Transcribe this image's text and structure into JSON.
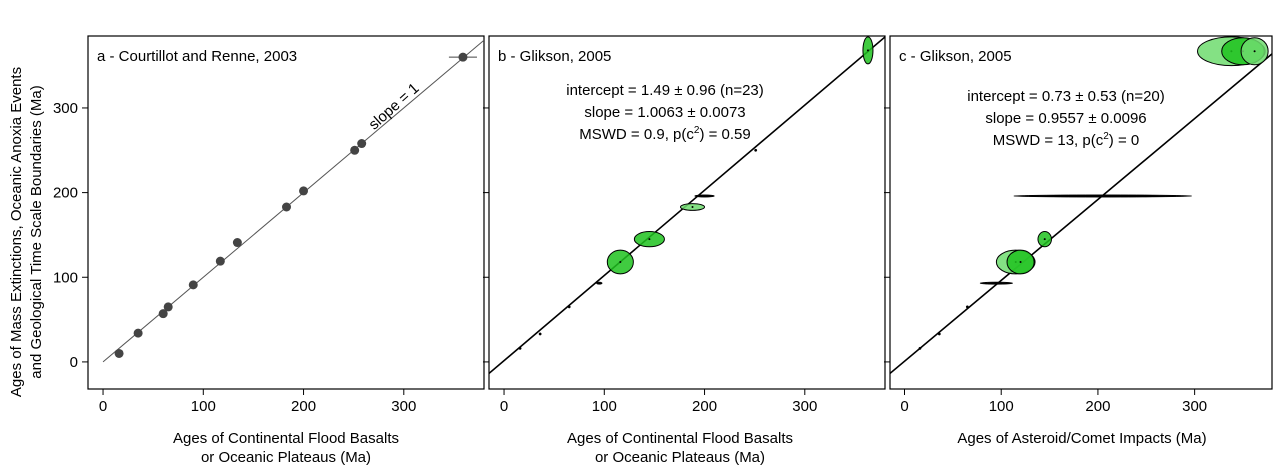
{
  "y_axis_title": {
    "line1": "Ages of Mass Extinctions, Oceanic Anoxia Events",
    "line2": "and Geological Time Scale Boundaries (Ma)"
  },
  "colors": {
    "ellipse_fill": "#1fc21f",
    "ellipse_fill_light": "#6fdc6f",
    "marker": "#444444",
    "line": "#000000"
  },
  "chart_data": [
    {
      "type": "scatter",
      "title": "a - Courtillot and Renne, 2003",
      "xlabel_line1": "Ages of Continental Flood Basalts",
      "xlabel_line2": "or Oceanic Plateaus (Ma)",
      "xlim": [
        -15,
        380
      ],
      "ylim": [
        -32,
        385
      ],
      "xticks": [
        "0",
        "100",
        "200",
        "300"
      ],
      "yticks": [
        "0",
        "100",
        "200",
        "300"
      ],
      "line_label": "slope = 1",
      "line": {
        "x": [
          0,
          380
        ],
        "y": [
          0,
          380
        ]
      },
      "points": [
        {
          "x": 16,
          "y": 10,
          "xerr": 0
        },
        {
          "x": 35,
          "y": 34,
          "xerr": 0
        },
        {
          "x": 60,
          "y": 57,
          "xerr": 0
        },
        {
          "x": 65,
          "y": 65,
          "xerr": 0
        },
        {
          "x": 90,
          "y": 91,
          "xerr": 0
        },
        {
          "x": 117,
          "y": 119,
          "xerr": 0
        },
        {
          "x": 134,
          "y": 141,
          "xerr": 0
        },
        {
          "x": 183,
          "y": 183,
          "xerr": 0
        },
        {
          "x": 200,
          "y": 202,
          "xerr": 0
        },
        {
          "x": 251,
          "y": 250,
          "xerr": 0
        },
        {
          "x": 258,
          "y": 258,
          "xerr": 0
        },
        {
          "x": 359,
          "y": 360,
          "xerr": 14
        }
      ]
    },
    {
      "type": "scatter",
      "title": "b - Glikson, 2005",
      "xlabel_line1": "Ages of Continental Flood Basalts",
      "xlabel_line2": "or Oceanic Plateaus (Ma)",
      "xlim": [
        -15,
        380
      ],
      "ylim": [
        -32,
        385
      ],
      "xticks": [
        "0",
        "100",
        "200",
        "300"
      ],
      "stats": {
        "line1": "intercept = 1.49 ± 0.96 (n=23)",
        "line2": "slope = 1.0063 ± 0.0073",
        "line3_a": "MSWD = 0.9, p(c",
        "line3_sup": "2",
        "line3_b": ") = 0.59"
      },
      "line": {
        "intercept": 1.49,
        "slope": 1.0063
      },
      "ellipses": [
        {
          "x": 16,
          "y": 16,
          "rx": 1,
          "ry": 1
        },
        {
          "x": 36,
          "y": 33,
          "rx": 1,
          "ry": 1
        },
        {
          "x": 65,
          "y": 65,
          "rx": 1,
          "ry": 1
        },
        {
          "x": 95,
          "y": 93,
          "rx": 3,
          "ry": 2
        },
        {
          "x": 116,
          "y": 118,
          "rx": 13,
          "ry": 14
        },
        {
          "x": 145,
          "y": 145,
          "rx": 15,
          "ry": 9
        },
        {
          "x": 188,
          "y": 183,
          "rx": 12,
          "ry": 4,
          "light": true
        },
        {
          "x": 200,
          "y": 196,
          "rx": 10,
          "ry": 1
        },
        {
          "x": 251,
          "y": 250,
          "rx": 1,
          "ry": 1
        },
        {
          "x": 363,
          "y": 368,
          "rx": 5,
          "ry": 16
        }
      ]
    },
    {
      "type": "scatter",
      "title": "c - Glikson, 2005",
      "xlabel_line1": "Ages of Asteroid/Comet Impacts (Ma)",
      "xlabel_line2": "",
      "xlim": [
        -15,
        380
      ],
      "ylim": [
        -32,
        385
      ],
      "xticks": [
        "0",
        "100",
        "200",
        "300"
      ],
      "stats": {
        "line1": "intercept = 0.73 ± 0.53 (n=20)",
        "line2": "slope = 0.9557 ± 0.0096",
        "line3_a": "MSWD = 13, p(c",
        "line3_sup": "2",
        "line3_b": ") = 0"
      },
      "line": {
        "intercept": 0.73,
        "slope": 0.9557
      },
      "ellipses": [
        {
          "x": 16,
          "y": 16,
          "rx": 1,
          "ry": 1
        },
        {
          "x": 36,
          "y": 33,
          "rx": 1,
          "ry": 1
        },
        {
          "x": 65,
          "y": 65,
          "rx": 1,
          "ry": 1
        },
        {
          "x": 95,
          "y": 93,
          "rx": 17,
          "ry": 2,
          "light": true
        },
        {
          "x": 115,
          "y": 118,
          "rx": 20,
          "ry": 14,
          "light": true
        },
        {
          "x": 120,
          "y": 118,
          "rx": 14,
          "ry": 14
        },
        {
          "x": 145,
          "y": 145,
          "rx": 7,
          "ry": 9
        },
        {
          "x": 205,
          "y": 196,
          "rx": 92,
          "ry": 1
        },
        {
          "x": 338,
          "y": 367,
          "rx": 35,
          "ry": 17,
          "light": true
        },
        {
          "x": 350,
          "y": 367,
          "rx": 22,
          "ry": 16
        },
        {
          "x": 362,
          "y": 367,
          "rx": 14,
          "ry": 16,
          "light": true
        }
      ]
    }
  ]
}
